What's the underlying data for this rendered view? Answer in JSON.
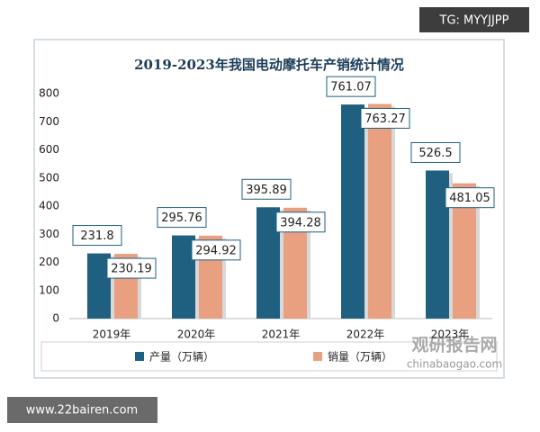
{
  "chart_data": {
    "type": "bar",
    "title": "2019-2023年我国电动摩托车产销统计情况",
    "categories": [
      "2019年",
      "2020年",
      "2021年",
      "2022年",
      "2023年"
    ],
    "series": [
      {
        "name": "产量（万辆）",
        "color": "#1f5f80",
        "values": [
          231.8,
          295.76,
          395.89,
          761.07,
          526.5
        ]
      },
      {
        "name": "销量（万辆）",
        "color": "#e8a081",
        "values": [
          230.19,
          294.92,
          394.28,
          763.27,
          481.05
        ]
      }
    ],
    "ylim": [
      0,
      800
    ],
    "yticks": [
      0,
      100,
      200,
      300,
      400,
      500,
      600,
      700,
      800
    ],
    "grid": false,
    "legend": "bottom",
    "annotations": [
      "TG: MYYJJPP",
      "www.22bairen.com",
      "观研报告网",
      "chinabaogao.com"
    ]
  }
}
